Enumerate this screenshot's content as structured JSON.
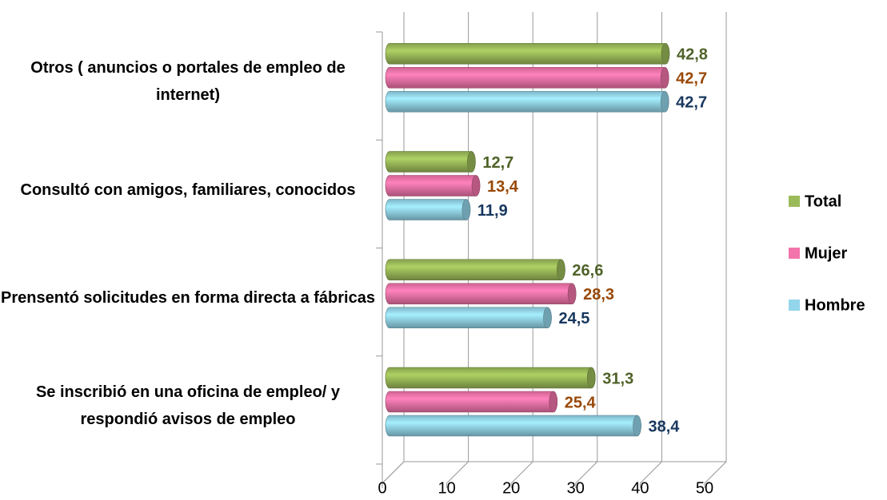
{
  "chart_data": {
    "type": "bar",
    "orientation": "horizontal",
    "categories": [
      "Se inscribió en una oficina de empleo/ y respondió avisos de empleo",
      "Prensentó solicitudes en forma directa a fábricas",
      "Consultó con amigos, familiares, conocidos",
      "Otros ( anuncios o portales de empleo de internet)"
    ],
    "series": [
      {
        "name": "Total",
        "color": "#9bbb59",
        "label_color": "#4f6228",
        "values": [
          31.3,
          26.6,
          12.7,
          42.8
        ],
        "value_labels": [
          "31,3",
          "26,6",
          "12,7",
          "42,8"
        ]
      },
      {
        "name": "Mujer",
        "color": "#f374aa",
        "label_color": "#984807",
        "values": [
          25.4,
          28.3,
          13.4,
          42.7
        ],
        "value_labels": [
          "25,4",
          "28,3",
          "13,4",
          "42,7"
        ]
      },
      {
        "name": "Hombre",
        "color": "#93d5ea",
        "label_color": "#17375e",
        "values": [
          38.4,
          24.5,
          11.9,
          42.7
        ],
        "value_labels": [
          "38,4",
          "24,5",
          "11,9",
          "42,7"
        ]
      }
    ],
    "xlim": [
      0,
      50
    ],
    "xticks": [
      0,
      10,
      20,
      30,
      40,
      50
    ],
    "grid": true,
    "legend": "right"
  }
}
